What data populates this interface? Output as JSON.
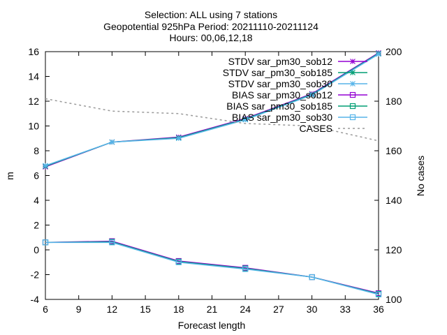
{
  "chart_data": {
    "type": "line",
    "title_lines": [
      "Selection: ALL using     7 stations",
      "Geopotential 925hPa   Period: 20211110-20211124",
      "Hours: 00,06,12,18"
    ],
    "xlabel": "Forecast length",
    "ylabel": "m",
    "y2label": "No cases",
    "x": [
      6,
      12,
      18,
      24,
      30,
      36
    ],
    "xlim": [
      6,
      36
    ],
    "ylim": [
      -4,
      16
    ],
    "y2lim": [
      100,
      200
    ],
    "x_ticks": [
      "6",
      "9",
      "12",
      "15",
      "18",
      "21",
      "24",
      "27",
      "30",
      "33",
      "36"
    ],
    "y_ticks": [
      "-4",
      "-2",
      "0",
      "2",
      "4",
      "6",
      "8",
      "10",
      "12",
      "14",
      "16"
    ],
    "y2_ticks": [
      "100",
      "120",
      "140",
      "160",
      "180",
      "200"
    ],
    "legend_position": "top-right",
    "grid": false,
    "series": [
      {
        "name": "STDV sar_pm30_sob12",
        "axis": "y1",
        "marker": "star",
        "color": "#9400d3",
        "values": [
          6.7,
          8.7,
          9.1,
          10.6,
          12.6,
          15.9
        ]
      },
      {
        "name": "STDV sar_pm30_sob185",
        "axis": "y1",
        "marker": "star",
        "color": "#009e73",
        "values": [
          6.75,
          8.7,
          9.05,
          10.55,
          12.55,
          15.85
        ]
      },
      {
        "name": "STDV sar_pm30_sob30",
        "axis": "y1",
        "marker": "star",
        "color": "#56b4e9",
        "values": [
          6.8,
          8.7,
          9.0,
          10.5,
          12.5,
          15.8
        ]
      },
      {
        "name": "BIAS sar_pm30_sob12",
        "axis": "y1",
        "marker": "square",
        "color": "#9400d3",
        "values": [
          0.6,
          0.7,
          -0.9,
          -1.45,
          -2.2,
          -3.5
        ]
      },
      {
        "name": "BIAS sar_pm30_sob185",
        "axis": "y1",
        "marker": "square",
        "color": "#009e73",
        "values": [
          0.6,
          0.65,
          -0.95,
          -1.5,
          -2.2,
          -3.55
        ]
      },
      {
        "name": "BIAS sar_pm30_sob30",
        "axis": "y1",
        "marker": "square",
        "color": "#56b4e9",
        "values": [
          0.6,
          0.6,
          -1.0,
          -1.55,
          -2.2,
          -3.6
        ]
      },
      {
        "name": "CASES",
        "axis": "y2",
        "marker": "none",
        "dashed": true,
        "color": "#999999",
        "values": [
          181,
          176,
          175,
          171,
          170,
          164
        ]
      }
    ]
  }
}
